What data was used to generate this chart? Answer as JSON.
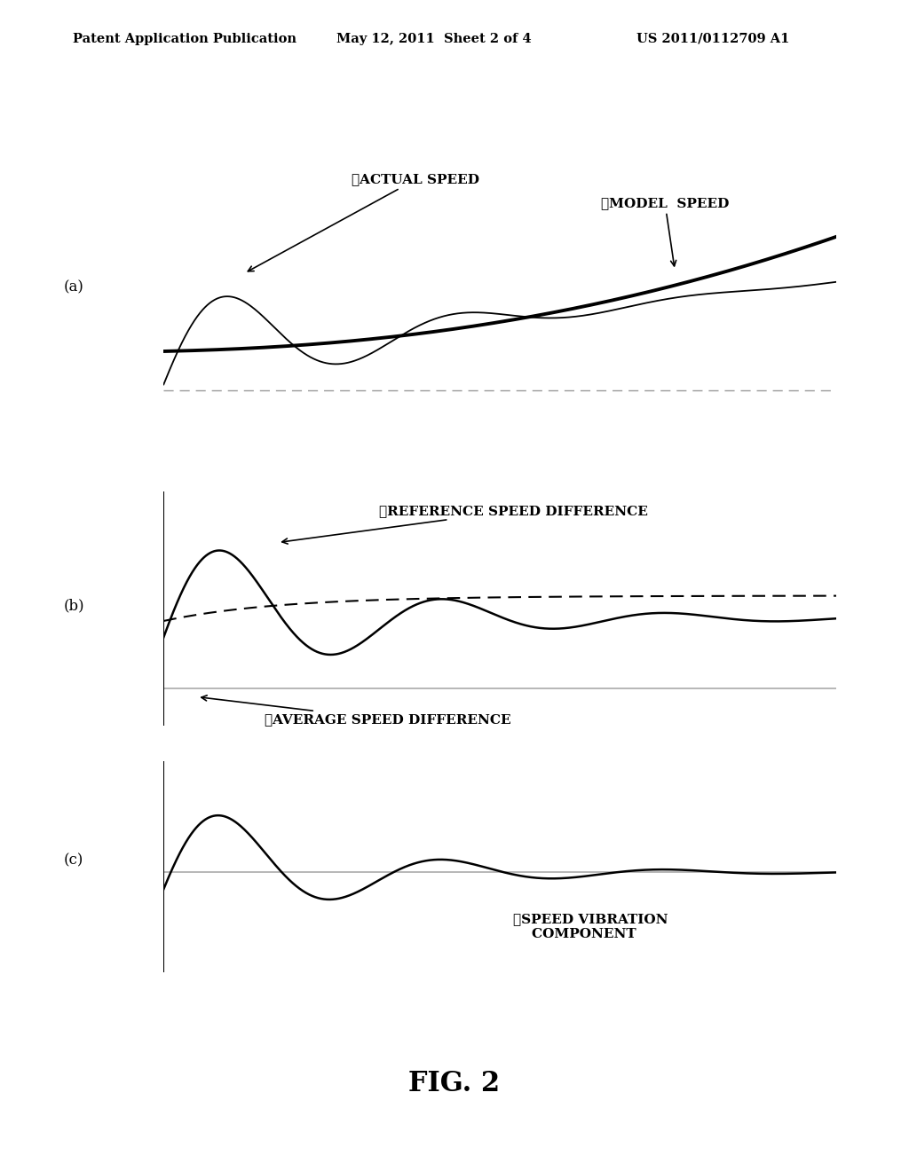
{
  "header_left": "Patent Application Publication",
  "header_mid": "May 12, 2011  Sheet 2 of 4",
  "header_right": "US 2011/0112709 A1",
  "fig_label": "FIG. 2",
  "panel_a_label": "(a)",
  "panel_b_label": "(b)",
  "panel_c_label": "(c)",
  "label1": "①ACTUAL SPEED",
  "label2": "②MODEL  SPEED",
  "label3": "③REFERENCE SPEED DIFFERENCE",
  "label4": "④AVERAGE SPEED DIFFERENCE",
  "label5": "⑤SPEED VIBRATION\n    COMPONENT",
  "bg_color": "#ffffff",
  "line_color": "#000000"
}
